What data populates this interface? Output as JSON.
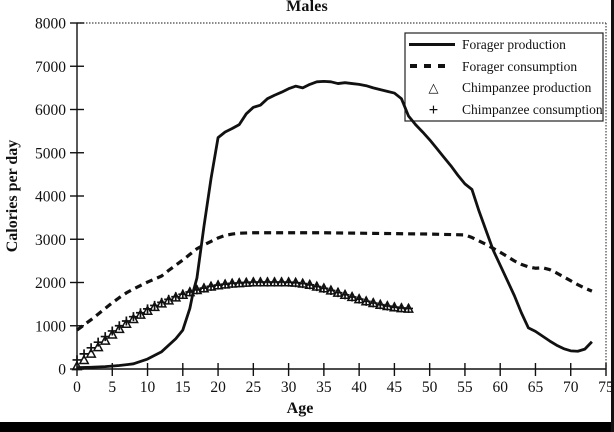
{
  "chart_data": {
    "type": "line",
    "title": "Males",
    "xlabel": "Age",
    "ylabel": "Calories per day",
    "xlim": [
      0,
      75
    ],
    "ylim": [
      0,
      8000
    ],
    "x_ticks": [
      0,
      5,
      10,
      15,
      20,
      25,
      30,
      35,
      40,
      45,
      50,
      55,
      60,
      65,
      70,
      75
    ],
    "y_ticks": [
      0,
      1000,
      2000,
      3000,
      4000,
      5000,
      6000,
      7000,
      8000
    ],
    "grid": false,
    "legend_position": "top-right",
    "ink_color": "#111111",
    "series": [
      {
        "name": "Forager production",
        "style": "solid-line",
        "points": [
          [
            0,
            30
          ],
          [
            2,
            40
          ],
          [
            4,
            55
          ],
          [
            6,
            80
          ],
          [
            8,
            120
          ],
          [
            10,
            230
          ],
          [
            12,
            400
          ],
          [
            14,
            700
          ],
          [
            15,
            900
          ],
          [
            16,
            1400
          ],
          [
            16.5,
            1800
          ],
          [
            17,
            2100
          ],
          [
            18,
            3300
          ],
          [
            19,
            4400
          ],
          [
            20,
            5350
          ],
          [
            21,
            5480
          ],
          [
            22,
            5560
          ],
          [
            23,
            5650
          ],
          [
            24,
            5900
          ],
          [
            25,
            6050
          ],
          [
            26,
            6100
          ],
          [
            27,
            6250
          ],
          [
            28,
            6330
          ],
          [
            29,
            6400
          ],
          [
            30,
            6480
          ],
          [
            31,
            6540
          ],
          [
            32,
            6500
          ],
          [
            33,
            6580
          ],
          [
            34,
            6640
          ],
          [
            35,
            6650
          ],
          [
            36,
            6640
          ],
          [
            37,
            6600
          ],
          [
            38,
            6620
          ],
          [
            39,
            6600
          ],
          [
            40,
            6580
          ],
          [
            41,
            6550
          ],
          [
            42,
            6500
          ],
          [
            43,
            6460
          ],
          [
            44,
            6420
          ],
          [
            45,
            6380
          ],
          [
            46,
            6250
          ],
          [
            47,
            5850
          ],
          [
            48,
            5650
          ],
          [
            49,
            5480
          ],
          [
            50,
            5300
          ],
          [
            51,
            5100
          ],
          [
            52,
            4900
          ],
          [
            53,
            4700
          ],
          [
            54,
            4480
          ],
          [
            55,
            4280
          ],
          [
            56,
            4150
          ],
          [
            57,
            3650
          ],
          [
            58,
            3200
          ],
          [
            59,
            2750
          ],
          [
            60,
            2400
          ],
          [
            61,
            2050
          ],
          [
            62,
            1700
          ],
          [
            63,
            1300
          ],
          [
            64,
            950
          ],
          [
            65,
            870
          ],
          [
            66,
            760
          ],
          [
            67,
            650
          ],
          [
            68,
            550
          ],
          [
            69,
            470
          ],
          [
            70,
            420
          ],
          [
            71,
            410
          ],
          [
            72,
            460
          ],
          [
            73,
            630
          ]
        ]
      },
      {
        "name": "Forager consumption",
        "style": "dashed-line",
        "points": [
          [
            0,
            900
          ],
          [
            1,
            1020
          ],
          [
            2,
            1140
          ],
          [
            3,
            1270
          ],
          [
            4,
            1400
          ],
          [
            5,
            1530
          ],
          [
            6,
            1650
          ],
          [
            7,
            1760
          ],
          [
            8,
            1850
          ],
          [
            9,
            1930
          ],
          [
            10,
            2010
          ],
          [
            11,
            2080
          ],
          [
            12,
            2150
          ],
          [
            13,
            2280
          ],
          [
            14,
            2400
          ],
          [
            15,
            2520
          ],
          [
            16,
            2650
          ],
          [
            17,
            2780
          ],
          [
            18,
            2870
          ],
          [
            19,
            2950
          ],
          [
            20,
            3030
          ],
          [
            21,
            3090
          ],
          [
            22,
            3120
          ],
          [
            23,
            3140
          ],
          [
            25,
            3150
          ],
          [
            30,
            3150
          ],
          [
            35,
            3150
          ],
          [
            40,
            3140
          ],
          [
            45,
            3130
          ],
          [
            50,
            3120
          ],
          [
            55,
            3100
          ],
          [
            56,
            3040
          ],
          [
            57,
            2960
          ],
          [
            58,
            2880
          ],
          [
            59,
            2790
          ],
          [
            60,
            2700
          ],
          [
            61,
            2600
          ],
          [
            62,
            2500
          ],
          [
            63,
            2420
          ],
          [
            64,
            2360
          ],
          [
            65,
            2330
          ],
          [
            66,
            2340
          ],
          [
            67,
            2300
          ],
          [
            68,
            2220
          ],
          [
            69,
            2130
          ],
          [
            70,
            2040
          ],
          [
            71,
            1950
          ],
          [
            72,
            1870
          ],
          [
            73,
            1800
          ]
        ]
      },
      {
        "name": "Chimpanzee production",
        "style": "triangle-markers",
        "points": [
          [
            0,
            60
          ],
          [
            1,
            200
          ],
          [
            2,
            350
          ],
          [
            3,
            500
          ],
          [
            4,
            650
          ],
          [
            5,
            790
          ],
          [
            6,
            920
          ],
          [
            7,
            1040
          ],
          [
            8,
            1150
          ],
          [
            9,
            1250
          ],
          [
            10,
            1340
          ],
          [
            11,
            1430
          ],
          [
            12,
            1510
          ],
          [
            13,
            1580
          ],
          [
            14,
            1650
          ],
          [
            15,
            1710
          ],
          [
            16,
            1770
          ],
          [
            17,
            1820
          ],
          [
            18,
            1860
          ],
          [
            19,
            1900
          ],
          [
            20,
            1930
          ],
          [
            21,
            1950
          ],
          [
            22,
            1970
          ],
          [
            23,
            1980
          ],
          [
            24,
            1990
          ],
          [
            25,
            2000
          ],
          [
            26,
            2000
          ],
          [
            27,
            2000
          ],
          [
            28,
            2000
          ],
          [
            29,
            2000
          ],
          [
            30,
            2000
          ],
          [
            31,
            1990
          ],
          [
            32,
            1970
          ],
          [
            33,
            1940
          ],
          [
            34,
            1900
          ],
          [
            35,
            1860
          ],
          [
            36,
            1810
          ],
          [
            37,
            1760
          ],
          [
            38,
            1710
          ],
          [
            39,
            1660
          ],
          [
            40,
            1610
          ],
          [
            41,
            1560
          ],
          [
            42,
            1520
          ],
          [
            43,
            1480
          ],
          [
            44,
            1450
          ],
          [
            45,
            1420
          ],
          [
            46,
            1400
          ],
          [
            47,
            1390
          ]
        ]
      },
      {
        "name": "Chimpanzee consumption",
        "style": "plus-markers",
        "points": [
          [
            0,
            210
          ],
          [
            1,
            350
          ],
          [
            2,
            490
          ],
          [
            3,
            620
          ],
          [
            4,
            750
          ],
          [
            5,
            880
          ],
          [
            6,
            1000
          ],
          [
            7,
            1110
          ],
          [
            8,
            1210
          ],
          [
            9,
            1300
          ],
          [
            10,
            1390
          ],
          [
            11,
            1470
          ],
          [
            12,
            1540
          ],
          [
            13,
            1610
          ],
          [
            14,
            1670
          ],
          [
            15,
            1730
          ],
          [
            16,
            1780
          ],
          [
            17,
            1830
          ],
          [
            18,
            1870
          ],
          [
            19,
            1910
          ],
          [
            20,
            1940
          ],
          [
            21,
            1960
          ],
          [
            22,
            1980
          ],
          [
            23,
            1990
          ],
          [
            24,
            2000
          ],
          [
            25,
            2010
          ],
          [
            26,
            2010
          ],
          [
            27,
            2010
          ],
          [
            28,
            2010
          ],
          [
            29,
            2010
          ],
          [
            30,
            2005
          ],
          [
            31,
            1995
          ],
          [
            32,
            1975
          ],
          [
            33,
            1945
          ],
          [
            34,
            1905
          ],
          [
            35,
            1865
          ],
          [
            36,
            1815
          ],
          [
            37,
            1765
          ],
          [
            38,
            1715
          ],
          [
            39,
            1665
          ],
          [
            40,
            1615
          ],
          [
            41,
            1565
          ],
          [
            42,
            1525
          ],
          [
            43,
            1485
          ],
          [
            44,
            1455
          ],
          [
            45,
            1430
          ],
          [
            46,
            1410
          ],
          [
            47,
            1400
          ]
        ]
      }
    ]
  }
}
